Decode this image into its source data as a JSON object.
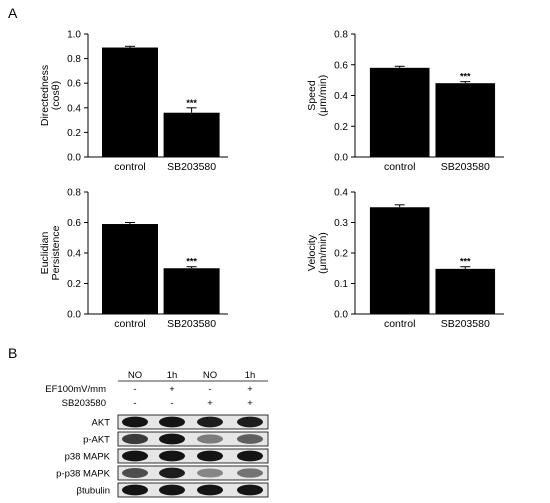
{
  "panel_labels": {
    "a": "A",
    "b": "B"
  },
  "chart_data": [
    {
      "type": "bar",
      "ylabel_lines": [
        "Directedness",
        "(cosθ)"
      ],
      "categories": [
        "control",
        "SB203580"
      ],
      "values": [
        0.89,
        0.36
      ],
      "errors": [
        0.01,
        0.04
      ],
      "annotations": [
        "",
        "***"
      ],
      "ylim": [
        0,
        1.0
      ],
      "yticks": [
        "0.0",
        "0.2",
        "0.4",
        "0.6",
        "0.8",
        "1.0"
      ],
      "color": "#000000"
    },
    {
      "type": "bar",
      "ylabel_lines": [
        "Speed",
        "(μm/min)"
      ],
      "categories": [
        "control",
        "SB203580"
      ],
      "values": [
        0.58,
        0.48
      ],
      "errors": [
        0.01,
        0.01
      ],
      "annotations": [
        "",
        "***"
      ],
      "ylim": [
        0,
        0.8
      ],
      "yticks": [
        "0.0",
        "0.2",
        "0.4",
        "0.6",
        "0.8"
      ],
      "color": "#000000"
    },
    {
      "type": "bar",
      "ylabel_lines": [
        "Euclidian",
        "Persistence"
      ],
      "categories": [
        "control",
        "SB203580"
      ],
      "values": [
        0.59,
        0.3
      ],
      "errors": [
        0.01,
        0.01
      ],
      "annotations": [
        "",
        "***"
      ],
      "ylim": [
        0,
        0.8
      ],
      "yticks": [
        "0.0",
        "0.2",
        "0.4",
        "0.6",
        "0.8"
      ],
      "color": "#000000"
    },
    {
      "type": "bar",
      "ylabel_lines": [
        "Velocity",
        "(μm/min)"
      ],
      "categories": [
        "control",
        "SB203580"
      ],
      "values": [
        0.35,
        0.148
      ],
      "errors": [
        0.008,
        0.007
      ],
      "annotations": [
        "",
        "***"
      ],
      "ylim": [
        0,
        0.4
      ],
      "yticks": [
        "0.0",
        "0.1",
        "0.2",
        "0.3",
        "0.4"
      ],
      "color": "#000000"
    }
  ],
  "western_blot": {
    "lane_headers": [
      "NO",
      "1h",
      "NO",
      "1h"
    ],
    "conditions": [
      {
        "label": "EF100mV/mm",
        "marks": [
          "-",
          "+",
          "-",
          "+"
        ]
      },
      {
        "label": "SB203580",
        "marks": [
          "-",
          "-",
          "+",
          "+"
        ]
      }
    ],
    "bands": [
      {
        "label": "AKT",
        "intensity": [
          0.95,
          0.95,
          0.9,
          0.9
        ]
      },
      {
        "label": "p-AKT",
        "intensity": [
          0.75,
          0.95,
          0.4,
          0.55
        ]
      },
      {
        "label": "p38 MAPK",
        "intensity": [
          0.95,
          0.95,
          0.95,
          0.95
        ]
      },
      {
        "label": "p-p38 MAPK",
        "intensity": [
          0.65,
          0.9,
          0.35,
          0.45
        ]
      },
      {
        "label": "βtubulin",
        "intensity": [
          0.95,
          0.95,
          0.95,
          0.95
        ]
      }
    ]
  }
}
